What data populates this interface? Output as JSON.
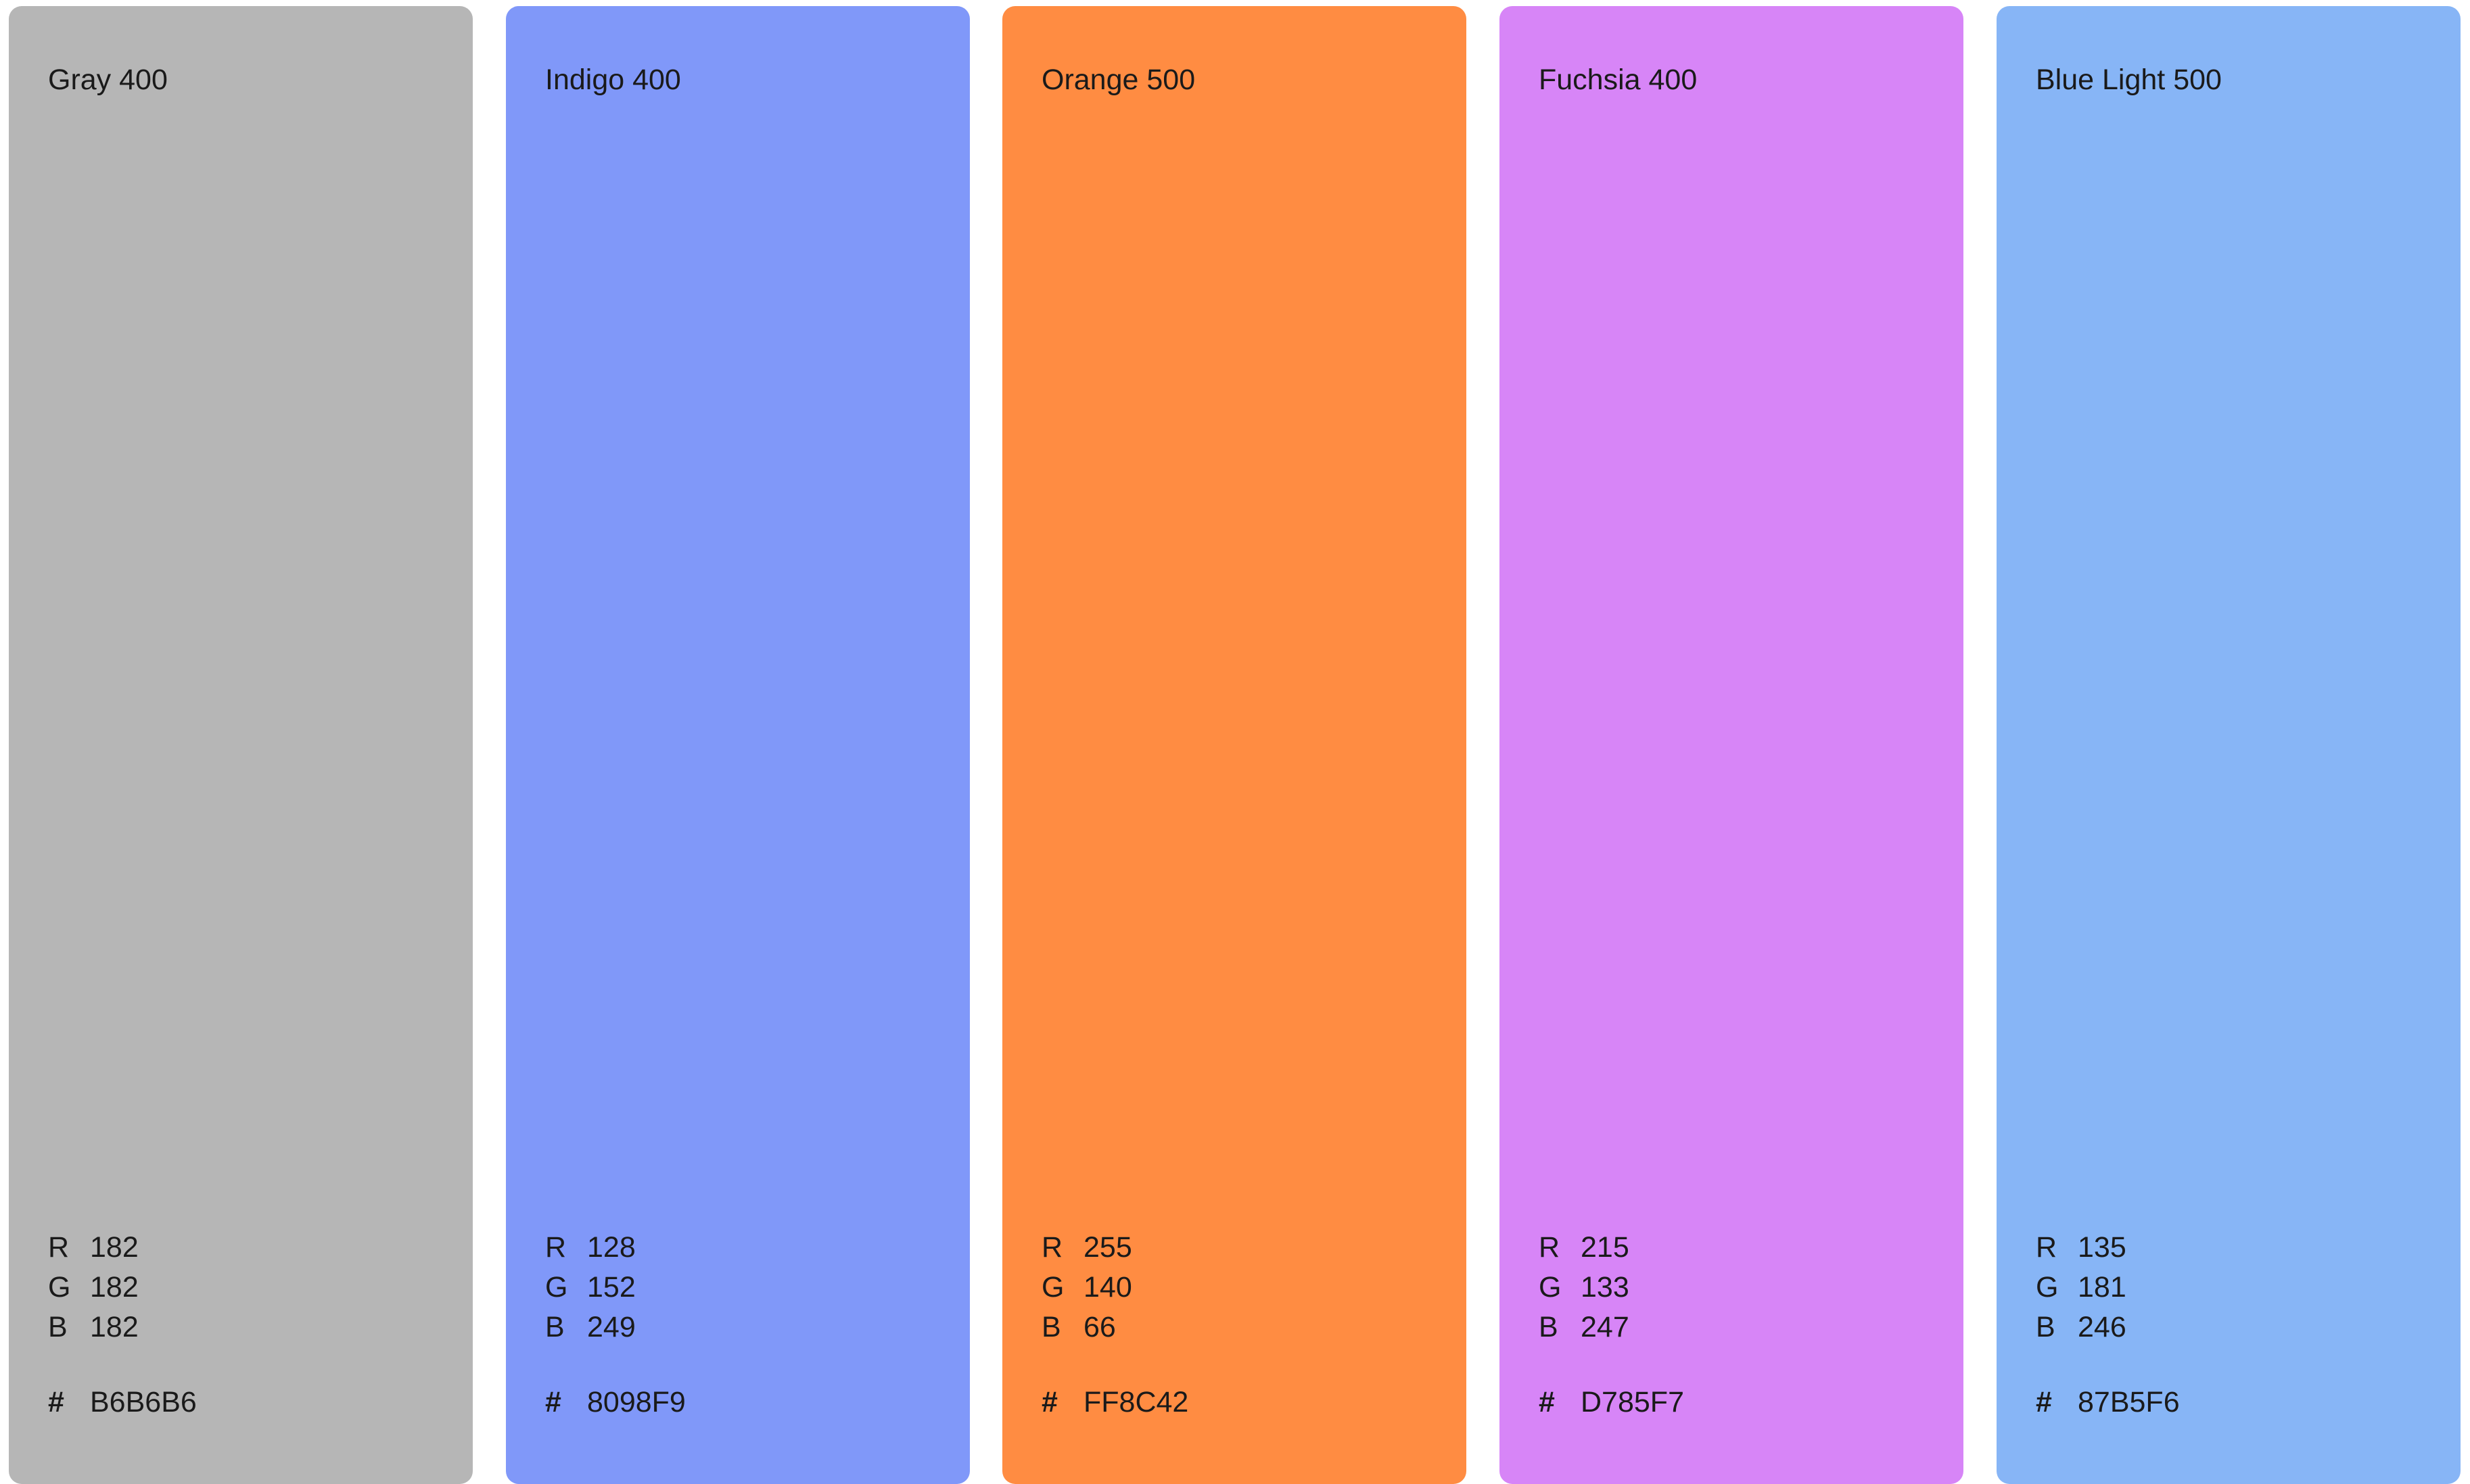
{
  "swatches": [
    {
      "name": "Gray 400",
      "r": "182",
      "g": "182",
      "b": "182",
      "hex": "B6B6B6",
      "color": "#B6B6B6"
    },
    {
      "name": "Indigo 400",
      "r": "128",
      "g": "152",
      "b": "249",
      "hex": "8098F9",
      "color": "#8098F9"
    },
    {
      "name": "Orange 500",
      "r": "255",
      "g": "140",
      "b": "66",
      "hex": "FF8C42",
      "color": "#FF8C42"
    },
    {
      "name": "Fuchsia 400",
      "r": "215",
      "g": "133",
      "b": "247",
      "hex": "D785F7",
      "color": "#D785F7"
    },
    {
      "name": "Blue Light 500",
      "r": "135",
      "g": "181",
      "b": "246",
      "hex": "87B5F6",
      "color": "#87B5F6"
    }
  ],
  "labels": {
    "r": "R",
    "g": "G",
    "b": "B",
    "hash": "#"
  }
}
